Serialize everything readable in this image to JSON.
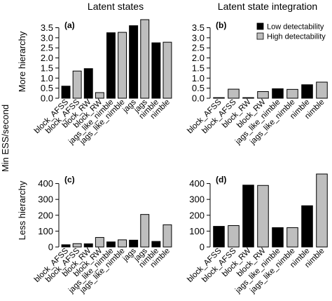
{
  "labels": {
    "col_titles": [
      "Latent states",
      "Latent state integration"
    ],
    "row_labels": [
      "More hierarchy",
      "Less hierarchy"
    ],
    "y_axis_label": "Min ESS/second"
  },
  "legend": {
    "position": "top-right of panel (b)",
    "entries": [
      {
        "name": "Low detectability",
        "color": "#000000"
      },
      {
        "name": "High detectability",
        "color": "#bebebe"
      }
    ]
  },
  "chart_data": [
    {
      "type": "bar",
      "panel_label": "(a)",
      "categories": [
        "block_AFSS",
        "block_AFSS",
        "block_RW",
        "block_RW",
        "jags_like_nimble",
        "jags_like_nimble",
        "jags",
        "jags",
        "nimble",
        "nimble"
      ],
      "values": [
        0.6,
        1.35,
        1.47,
        0.28,
        3.25,
        3.27,
        3.6,
        3.9,
        2.75,
        2.78
      ],
      "fills": [
        "#000000",
        "#bebebe",
        "#000000",
        "#bebebe",
        "#000000",
        "#bebebe",
        "#000000",
        "#bebebe",
        "#000000",
        "#bebebe"
      ],
      "ylim": [
        0,
        3.9
      ],
      "yticks": [
        0.0,
        0.5,
        1.0,
        1.5,
        2.0,
        2.5,
        3.0,
        3.5
      ],
      "ytick_labels": [
        "0.0",
        "0.5",
        "1.0",
        "1.5",
        "2.0",
        "2.5",
        "3.0",
        "3.5"
      ]
    },
    {
      "type": "bar",
      "panel_label": "(b)",
      "categories": [
        "block_AFSS",
        "block_AFSS",
        "block_RW",
        "block_RW",
        "jags_like_nimble",
        "jags_like_nimble",
        "nimble",
        "nimble"
      ],
      "values": [
        0.03,
        0.45,
        0.03,
        0.33,
        0.47,
        0.44,
        0.67,
        0.8
      ],
      "fills": [
        "#000000",
        "#bebebe",
        "#000000",
        "#bebebe",
        "#000000",
        "#bebebe",
        "#000000",
        "#bebebe"
      ],
      "ylim": [
        0,
        3.9
      ],
      "yticks": [
        0.0,
        0.5,
        1.0,
        1.5,
        2.0,
        2.5,
        3.0,
        3.5
      ],
      "ytick_labels": [
        "0.0",
        "0.5",
        "1.0",
        "1.5",
        "2.0",
        "2.5",
        "3.0",
        "3.5"
      ]
    },
    {
      "type": "bar",
      "panel_label": "(c)",
      "categories": [
        "block_AFSS",
        "block_AFSS",
        "block_RW",
        "block_RW",
        "jags_like_nimble",
        "jags_like_nimble",
        "jags",
        "jags",
        "nimble",
        "nimble"
      ],
      "values": [
        14,
        21,
        20,
        60,
        32,
        45,
        43,
        205,
        35,
        140
      ],
      "fills": [
        "#000000",
        "#bebebe",
        "#000000",
        "#bebebe",
        "#000000",
        "#bebebe",
        "#000000",
        "#bebebe",
        "#000000",
        "#bebebe"
      ],
      "ylim": [
        0,
        460
      ],
      "yticks": [
        0,
        100,
        200,
        300,
        400
      ],
      "ytick_labels": [
        "0",
        "100",
        "200",
        "300",
        "400"
      ]
    },
    {
      "type": "bar",
      "panel_label": "(d)",
      "categories": [
        "block_AFSS",
        "block_AFSS",
        "block_RW",
        "block_RW",
        "jags_like_nimble",
        "jags_like_nimble",
        "nimble",
        "nimble"
      ],
      "values": [
        130,
        135,
        390,
        388,
        122,
        122,
        260,
        460
      ],
      "fills": [
        "#000000",
        "#bebebe",
        "#000000",
        "#bebebe",
        "#000000",
        "#bebebe",
        "#000000",
        "#bebebe"
      ],
      "ylim": [
        0,
        460
      ],
      "yticks": [
        0,
        100,
        200,
        300,
        400
      ],
      "ytick_labels": [
        "0",
        "100",
        "200",
        "300",
        "400"
      ]
    }
  ]
}
